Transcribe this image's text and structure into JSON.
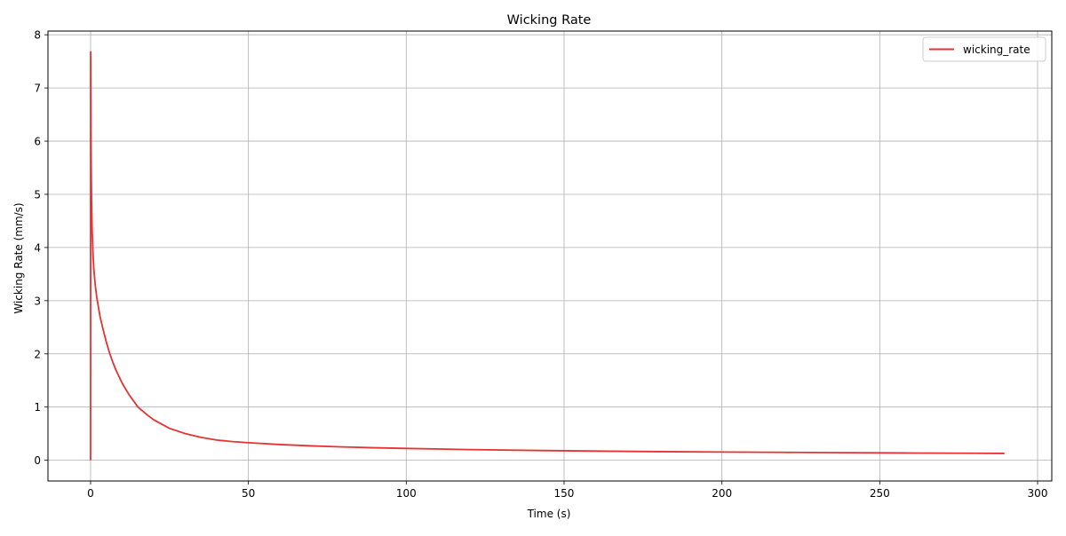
{
  "chart_data": {
    "type": "line",
    "title": "Wicking Rate",
    "xlabel": "Time (s)",
    "ylabel": "Wicking Rate (mm/s)",
    "xlim": [
      -13.5,
      304.5
    ],
    "ylim": [
      -0.39,
      8.07
    ],
    "xticks": [
      0,
      50,
      100,
      150,
      200,
      250,
      300
    ],
    "yticks": [
      0,
      1,
      2,
      3,
      4,
      5,
      6,
      7,
      8
    ],
    "grid": true,
    "legend_position": "top-right",
    "series": [
      {
        "name": "wicking_rate",
        "color": "#e63232",
        "x": [
          0,
          0.02,
          0.05,
          0.1,
          0.15,
          0.2,
          0.3,
          0.5,
          0.8,
          1,
          1.5,
          2,
          3,
          4,
          5,
          6,
          7,
          8,
          10,
          12,
          15,
          18,
          20,
          25,
          30,
          35,
          40,
          45,
          50,
          60,
          70,
          80,
          90,
          100,
          120,
          140,
          150,
          160,
          180,
          200,
          220,
          240,
          250,
          260,
          280,
          289.5
        ],
        "y": [
          0,
          7.68,
          7.4,
          6.6,
          6.0,
          5.5,
          4.9,
          4.3,
          3.85,
          3.62,
          3.28,
          3.05,
          2.7,
          2.45,
          2.22,
          2.02,
          1.85,
          1.7,
          1.45,
          1.25,
          1.0,
          0.85,
          0.76,
          0.6,
          0.5,
          0.43,
          0.38,
          0.35,
          0.33,
          0.295,
          0.27,
          0.25,
          0.235,
          0.222,
          0.2,
          0.185,
          0.178,
          0.172,
          0.162,
          0.155,
          0.148,
          0.142,
          0.139,
          0.136,
          0.131,
          0.128
        ]
      }
    ]
  }
}
